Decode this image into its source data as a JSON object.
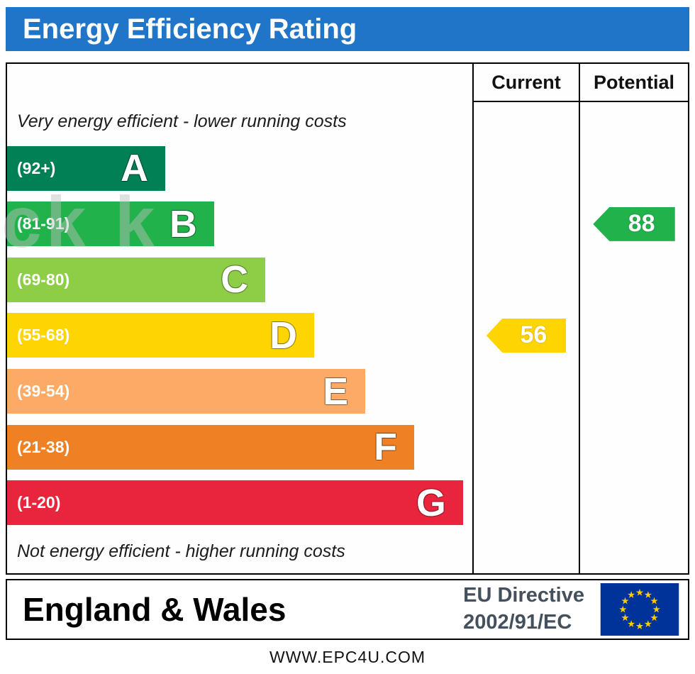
{
  "title": "Energy Efficiency Rating",
  "chart_data": {
    "type": "bar",
    "title": "Energy Efficiency Rating",
    "columns": {
      "current": "Current",
      "potential": "Potential"
    },
    "top_note": "Very energy efficient - lower running costs",
    "bottom_note": "Not energy efficient - higher running costs",
    "bands": [
      {
        "letter": "A",
        "range": "(92+)",
        "color": "#008054",
        "width_pct": 34
      },
      {
        "letter": "B",
        "range": "(81-91)",
        "color": "#21b24b",
        "width_pct": 44.5
      },
      {
        "letter": "C",
        "range": "(69-80)",
        "color": "#8dce46",
        "width_pct": 55.5
      },
      {
        "letter": "D",
        "range": "(55-68)",
        "color": "#ffd500",
        "width_pct": 66
      },
      {
        "letter": "E",
        "range": "(39-54)",
        "color": "#fcaa65",
        "width_pct": 77
      },
      {
        "letter": "F",
        "range": "(21-38)",
        "color": "#ef8023",
        "width_pct": 87.5
      },
      {
        "letter": "G",
        "range": "(1-20)",
        "color": "#e9243d",
        "width_pct": 98
      }
    ],
    "current": {
      "value": 56,
      "band": "D",
      "color": "#ffd500"
    },
    "potential": {
      "value": 88,
      "band": "B",
      "color": "#21b24b"
    }
  },
  "footer": {
    "region": "England & Wales",
    "directive_line1": "EU Directive",
    "directive_line2": "2002/91/EC",
    "flag_colors": {
      "background": "#003399",
      "stars": "#ffcc00"
    }
  },
  "website": "WWW.EPC4U.COM",
  "watermark": "ck k",
  "colors": {
    "header_bg": "#2175c8",
    "header_text": "#ffffff"
  }
}
